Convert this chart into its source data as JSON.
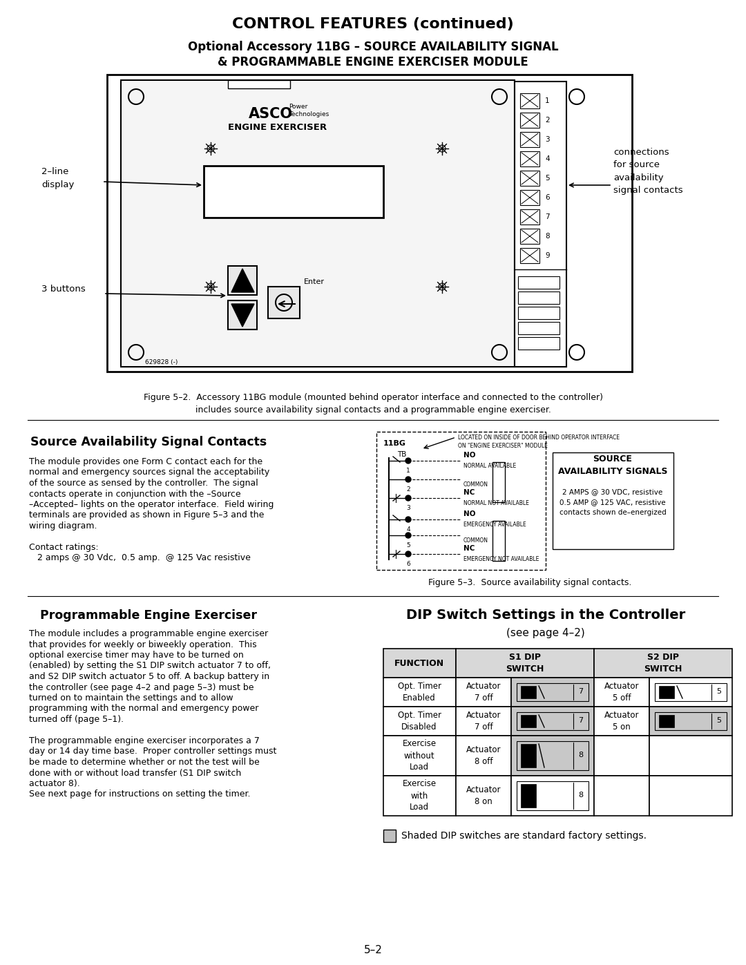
{
  "title": "CONTROL FEATURES (continued)",
  "subtitle1": "Optional Accessory 11BG – SOURCE AVAILABILITY SIGNAL",
  "subtitle2": "& PROGRAMMABLE ENGINE EXERCISER MODULE",
  "fig2_caption1": "Figure 5–2.  Accessory 11BG module (mounted behind operator interface and connected to the controller)",
  "fig2_caption2": "includes source availability signal contacts and a programmable engine exerciser.",
  "fig3_caption": "Figure 5–3.  Source availability signal contacts.",
  "section1_title": "Source Availability Signal Contacts",
  "section2_title": "Programmable Engine Exerciser",
  "dip_title": "DIP Switch Settings in the Controller",
  "dip_subtitle": "(see page 4–2)",
  "page_num": "5–2",
  "bg_color": "#ffffff"
}
